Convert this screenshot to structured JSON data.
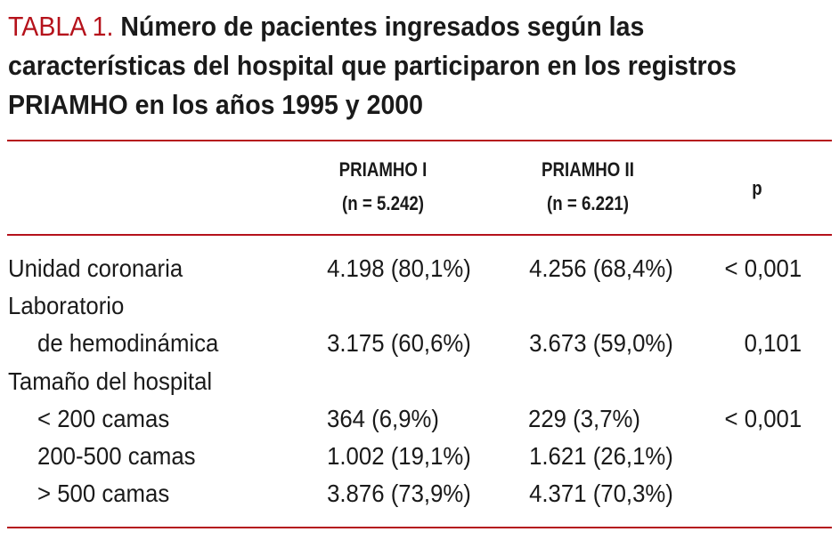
{
  "title": {
    "label": "TABLA 1.",
    "text": "Número de pacientes ingresados según las características del hospital que participaron en los registros PRIAMHO en los años 1995 y 2000"
  },
  "columns": [
    {
      "name": "PRIAMHO I",
      "n": "(n = 5.242)"
    },
    {
      "name": "PRIAMHO II",
      "n": "(n = 6.221)"
    },
    {
      "name": "p"
    }
  ],
  "rows": [
    {
      "label": "Unidad coronaria",
      "c1": "4.198 (80,1%)",
      "c2": "4.256 (68,4%)",
      "p": "< 0,001"
    },
    {
      "label": "Laboratorio"
    },
    {
      "label": "de hemodinámica",
      "c1": "3.175 (60,6%)",
      "c2": "3.673 (59,0%)",
      "p": "0,101"
    },
    {
      "label": "Tamaño del hospital"
    },
    {
      "label": "< 200 camas",
      "c1": "364 (6,9%)",
      "c2": "229 (3,7%)",
      "p": "< 0,001"
    },
    {
      "label": "200-500 camas",
      "c1": "1.002 (19,1%)",
      "c2": "1.621 (26,1%)"
    },
    {
      "label": "> 500 camas",
      "c1": "3.876 (73,9%)",
      "c2": "4.371 (70,3%)"
    }
  ]
}
